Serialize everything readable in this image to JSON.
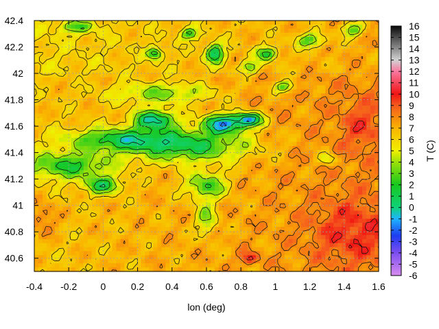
{
  "chart_data": {
    "type": "heatmap",
    "title": "",
    "xlabel": "lon (deg)",
    "ylabel": "",
    "colorbar_label": "T (C)",
    "xlim": [
      -0.4,
      1.6
    ],
    "ylim": [
      40.5,
      42.4
    ],
    "x_ticks": [
      "-0.4",
      "-0.2",
      "0",
      "0.2",
      "0.4",
      "0.6",
      "0.8",
      "1",
      "1.2",
      "1.4",
      "1.6"
    ],
    "y_ticks": [
      "40.6",
      "40.8",
      "41",
      "41.2",
      "41.4",
      "41.6",
      "41.8",
      "42",
      "42.2",
      "42.4"
    ],
    "colorbar_range": [
      -6,
      16
    ],
    "colorbar_ticks": [
      "-6",
      "-5",
      "-4",
      "-3",
      "-2",
      "-1",
      "0",
      "1",
      "2",
      "3",
      "4",
      "5",
      "6",
      "7",
      "8",
      "9",
      "10",
      "11",
      "12",
      "13",
      "14",
      "15",
      "16"
    ],
    "colormap": [
      {
        "value": -6,
        "color": "#d78cf0"
      },
      {
        "value": -4,
        "color": "#7d4ef0"
      },
      {
        "value": -2.5,
        "color": "#1e3cf0"
      },
      {
        "value": -1,
        "color": "#1eb4ff"
      },
      {
        "value": 0,
        "color": "#10d27a"
      },
      {
        "value": 2,
        "color": "#17c81e"
      },
      {
        "value": 4,
        "color": "#9be10a"
      },
      {
        "value": 5,
        "color": "#f0f000"
      },
      {
        "value": 7,
        "color": "#fab400"
      },
      {
        "value": 9,
        "color": "#f55a1e"
      },
      {
        "value": 10,
        "color": "#f01414"
      },
      {
        "value": 12,
        "color": "#fa78a0"
      },
      {
        "value": 13,
        "color": "#d2d2d2"
      },
      {
        "value": 16,
        "color": "#0a0a0a"
      }
    ],
    "grid": true,
    "contours": true,
    "field_features": [
      {
        "lon": 0.7,
        "lat": 41.62,
        "t": -2.5,
        "sx": 0.12,
        "sy": 0.07
      },
      {
        "lon": 0.85,
        "lat": 41.65,
        "t": -2,
        "sx": 0.08,
        "sy": 0.05
      },
      {
        "lon": 0.3,
        "lat": 41.65,
        "t": -1.5,
        "sx": 0.12,
        "sy": 0.07
      },
      {
        "lon": 0.5,
        "lat": 41.45,
        "t": 0.5,
        "sx": 0.35,
        "sy": 0.12
      },
      {
        "lon": 0.1,
        "lat": 41.5,
        "t": 1,
        "sx": 0.3,
        "sy": 0.08
      },
      {
        "lon": -0.2,
        "lat": 41.3,
        "t": 1.5,
        "sx": 0.25,
        "sy": 0.1
      },
      {
        "lon": 0.0,
        "lat": 41.15,
        "t": 0.5,
        "sx": 0.1,
        "sy": 0.06
      },
      {
        "lon": 0.6,
        "lat": 41.15,
        "t": 1.5,
        "sx": 0.12,
        "sy": 0.1
      },
      {
        "lon": 0.6,
        "lat": 40.9,
        "t": 3,
        "sx": 0.06,
        "sy": 0.12
      },
      {
        "lon": 0.35,
        "lat": 41.85,
        "t": 3,
        "sx": 0.3,
        "sy": 0.08
      },
      {
        "lon": 0.65,
        "lat": 42.15,
        "t": -1,
        "sx": 0.05,
        "sy": 0.07
      },
      {
        "lon": 0.3,
        "lat": 42.15,
        "t": -0.5,
        "sx": 0.04,
        "sy": 0.04
      },
      {
        "lon": 0.95,
        "lat": 42.15,
        "t": 0.5,
        "sx": 0.06,
        "sy": 0.05
      },
      {
        "lon": 1.2,
        "lat": 42.25,
        "t": 1.5,
        "sx": 0.08,
        "sy": 0.05
      },
      {
        "lon": 1.45,
        "lat": 42.33,
        "t": 1.5,
        "sx": 0.06,
        "sy": 0.05
      },
      {
        "lon": 0.5,
        "lat": 42.3,
        "t": 1,
        "sx": 0.05,
        "sy": 0.04
      },
      {
        "lon": 0.85,
        "lat": 42.05,
        "t": 2,
        "sx": 0.05,
        "sy": 0.04
      },
      {
        "lon": 1.05,
        "lat": 41.9,
        "t": 1,
        "sx": 0.06,
        "sy": 0.04
      },
      {
        "lon": 1.3,
        "lat": 41.35,
        "t": 3,
        "sx": 0.05,
        "sy": 0.04
      },
      {
        "lon": -0.15,
        "lat": 42.35,
        "t": 2.5,
        "sx": 0.1,
        "sy": 0.04
      },
      {
        "lon": -0.35,
        "lat": 40.9,
        "t": 9.5,
        "sx": 0.08,
        "sy": 0.12
      },
      {
        "lon": 1.45,
        "lat": 40.8,
        "t": 9.5,
        "sx": 0.25,
        "sy": 0.25
      },
      {
        "lon": 1.5,
        "lat": 41.6,
        "t": 9,
        "sx": 0.12,
        "sy": 0.2
      },
      {
        "lon": 0.85,
        "lat": 40.6,
        "t": 11,
        "sx": 0.05,
        "sy": 0.04
      }
    ]
  }
}
